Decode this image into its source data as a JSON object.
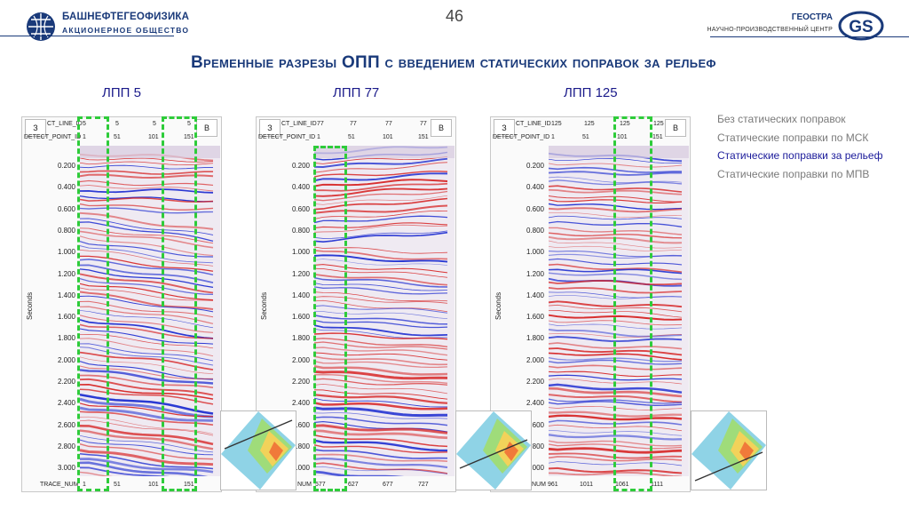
{
  "header": {
    "brand_left": "БАШНЕФТЕГЕОФИЗИКА",
    "brand_left_sub": "АКЦИОНЕРНОЕ ОБЩЕСТВО",
    "page_number": "46",
    "brand_right": "ГЕОСТРА",
    "brand_right_sub": "НАУЧНО-ПРОИЗВОДСТВЕННЫЙ ЦЕНТР",
    "brand_right_logo": "GS"
  },
  "title": "Временные разрезы ОПП с введением статических поправок за рельеф",
  "legend": [
    {
      "label": "Без статических поправок",
      "active": false
    },
    {
      "label": "Статические поправки по МСК",
      "active": false
    },
    {
      "label": "Статические поправки за рельеф",
      "active": true
    },
    {
      "label": "Статические поправки по МПВ",
      "active": false
    }
  ],
  "panels": [
    {
      "label": "ЛПП 5",
      "corner_left": "З",
      "corner_right": "В",
      "ct_line_label": "CT_LINE_ID",
      "detect_label": "DETECT_POINT_ID",
      "trace_label": "TRACE_NUM",
      "ct_values": [
        "5",
        "5",
        "5",
        "5"
      ],
      "detect_values": [
        "1",
        "51",
        "101",
        "151"
      ],
      "trace_values": [
        "1",
        "51",
        "101",
        "151"
      ]
    },
    {
      "label": "ЛПП 77",
      "corner_left": "З",
      "corner_right": "В",
      "ct_line_label": "CT_LINE_ID",
      "detect_label": "DETECT_POINT_ID",
      "trace_label": "NUM",
      "ct_values": [
        "77",
        "77",
        "77",
        "77"
      ],
      "detect_values": [
        "1",
        "51",
        "101",
        "151"
      ],
      "trace_values": [
        "577",
        "627",
        "677",
        "727"
      ]
    },
    {
      "label": "ЛПП 125",
      "corner_left": "З",
      "corner_right": "В",
      "ct_line_label": "CT_LINE_ID",
      "detect_label": "DETECT_POINT_ID",
      "trace_label": "NUM",
      "ct_values": [
        "125",
        "125",
        "125",
        "125"
      ],
      "detect_values": [
        "1",
        "51",
        "101",
        "151"
      ],
      "trace_values": [
        "961",
        "1011",
        "1061",
        "1111"
      ]
    }
  ],
  "axis": {
    "title": "Seconds",
    "ticks": [
      "0.200",
      "0.400",
      "0.600",
      "0.800",
      "1.000",
      "1.200",
      "1.400",
      "1.600",
      "1.800",
      "2.000",
      "2.200",
      "2.400",
      "2.600",
      "2.800",
      "3.000"
    ]
  },
  "colors": {
    "brand": "#1a3a7a",
    "highlight": "#2ecc3a",
    "positive": "#d62020",
    "negative": "#1a2ad0"
  }
}
